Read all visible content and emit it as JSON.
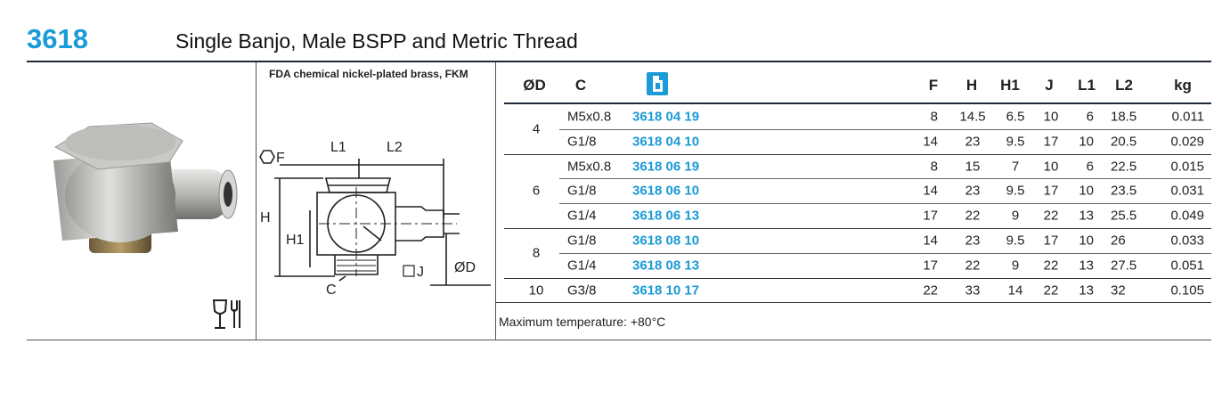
{
  "header": {
    "code": "3618",
    "title": "Single Banjo, Male BSPP and Metric Thread"
  },
  "material": "FDA chemical nickel-plated brass, FKM",
  "diagram": {
    "f": "F",
    "l1": "L1",
    "l2": "L2",
    "h": "H",
    "h1": "H1",
    "j": "J",
    "d": "ØD",
    "c": "C"
  },
  "table": {
    "columns": {
      "d": "ØD",
      "c": "C",
      "F": "F",
      "H": "H",
      "H1": "H1",
      "J": "J",
      "L1": "L1",
      "L2": "L2",
      "kg": "kg"
    },
    "groups": [
      {
        "d": 4,
        "rows": [
          {
            "c": "M5x0.8",
            "code": "3618 04 19",
            "F": 8,
            "H": 14.5,
            "H1": 6.5,
            "J": 10,
            "L1": 6,
            "L2": 18.5,
            "kg": 0.011
          },
          {
            "c": "G1/8",
            "code": "3618 04 10",
            "F": 14,
            "H": 23,
            "H1": 9.5,
            "J": 17,
            "L1": 10,
            "L2": 20.5,
            "kg": 0.029
          }
        ]
      },
      {
        "d": 6,
        "rows": [
          {
            "c": "M5x0.8",
            "code": "3618 06 19",
            "F": 8,
            "H": 15,
            "H1": 7,
            "J": 10,
            "L1": 6,
            "L2": 22.5,
            "kg": 0.015
          },
          {
            "c": "G1/8",
            "code": "3618 06 10",
            "F": 14,
            "H": 23,
            "H1": 9.5,
            "J": 17,
            "L1": 10,
            "L2": 23.5,
            "kg": 0.031
          },
          {
            "c": "G1/4",
            "code": "3618 06 13",
            "F": 17,
            "H": 22,
            "H1": 9,
            "J": 22,
            "L1": 13,
            "L2": 25.5,
            "kg": 0.049
          }
        ]
      },
      {
        "d": 8,
        "rows": [
          {
            "c": "G1/8",
            "code": "3618 08 10",
            "F": 14,
            "H": 23,
            "H1": 9.5,
            "J": 17,
            "L1": 10,
            "L2": 26,
            "kg": 0.033
          },
          {
            "c": "G1/4",
            "code": "3618 08 13",
            "F": 17,
            "H": 22,
            "H1": 9,
            "J": 22,
            "L1": 13,
            "L2": 27.5,
            "kg": 0.051
          }
        ]
      },
      {
        "d": 10,
        "rows": [
          {
            "c": "G3/8",
            "code": "3618 10 17",
            "F": 22,
            "H": 33,
            "H1": 14,
            "J": 22,
            "L1": 13,
            "L2": 32,
            "kg": 0.105
          }
        ]
      }
    ],
    "note": "Maximum temperature: +80°C"
  }
}
